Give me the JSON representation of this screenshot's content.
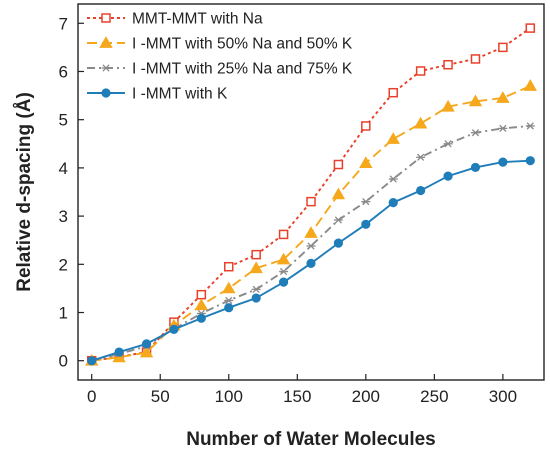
{
  "chart_data": {
    "type": "line",
    "xlabel": "Number of Water Molecules",
    "ylabel": "Relative d-spacing (Å)",
    "xlim": [
      -10,
      330
    ],
    "ylim": [
      -0.4,
      7.4
    ],
    "xticks": [
      "0",
      "50",
      "100",
      "150",
      "200",
      "250",
      "300"
    ],
    "yticks": [
      "0",
      "1",
      "2",
      "3",
      "4",
      "5",
      "6",
      "7"
    ],
    "grid": false,
    "legend_position": "top-left",
    "x": [
      0,
      20,
      40,
      60,
      80,
      100,
      120,
      140,
      160,
      180,
      200,
      220,
      240,
      260,
      280,
      300,
      320
    ],
    "series": [
      {
        "name": "MMT-MMT with Na",
        "color": "#e8402a",
        "marker": "open-square",
        "line": "dotted",
        "values": [
          0.0,
          0.08,
          0.18,
          0.8,
          1.37,
          1.95,
          2.2,
          2.62,
          3.3,
          4.07,
          4.87,
          5.56,
          6.01,
          6.14,
          6.26,
          6.5,
          6.9
        ]
      },
      {
        "name": "I -MMT with 50% Na and 50% K",
        "color": "#f5a81c",
        "marker": "filled-triangle",
        "line": "dashed",
        "values": [
          0.0,
          0.07,
          0.17,
          0.73,
          1.15,
          1.5,
          1.92,
          2.1,
          2.65,
          3.45,
          4.1,
          4.6,
          4.92,
          5.27,
          5.38,
          5.45,
          5.7
        ]
      },
      {
        "name": "I -MMT with 25% Na and 75% K",
        "color": "#8a8a8a",
        "marker": "star",
        "line": "dash-dot",
        "values": [
          0.0,
          0.14,
          0.3,
          0.66,
          0.98,
          1.25,
          1.48,
          1.85,
          2.38,
          2.92,
          3.3,
          3.77,
          4.22,
          4.5,
          4.73,
          4.82,
          4.87
        ]
      },
      {
        "name": "I -MMT with  K",
        "color": "#1f7db8",
        "marker": "filled-circle",
        "line": "solid",
        "values": [
          0.0,
          0.18,
          0.35,
          0.65,
          0.88,
          1.1,
          1.3,
          1.63,
          2.02,
          2.44,
          2.83,
          3.28,
          3.53,
          3.83,
          4.01,
          4.12,
          4.15
        ]
      }
    ]
  }
}
